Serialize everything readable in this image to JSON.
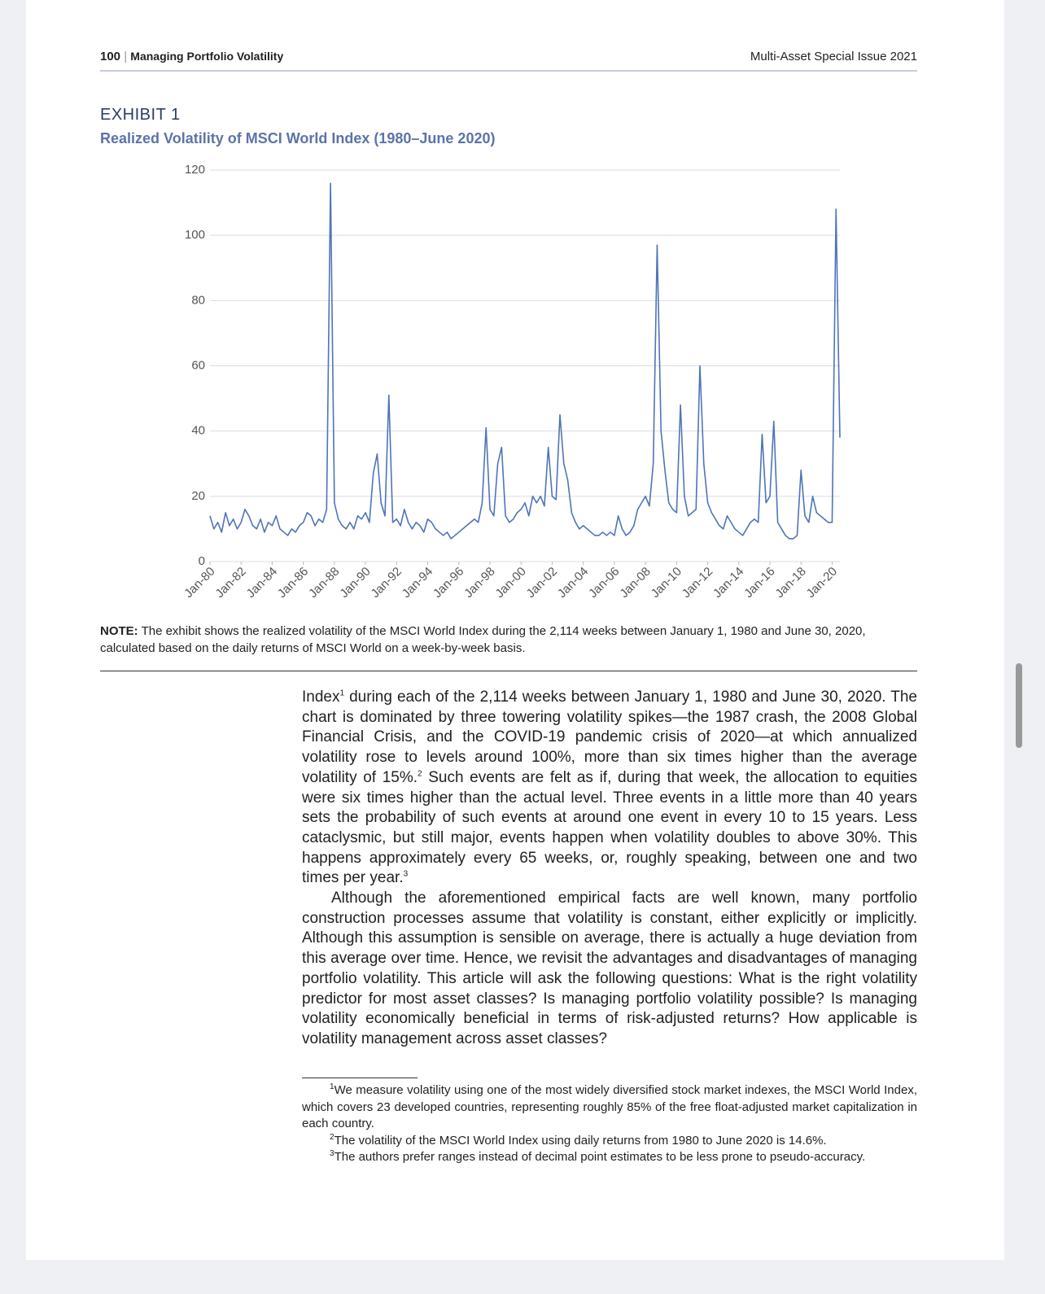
{
  "header": {
    "page_number": "100",
    "section": "Managing Portfolio Volatility",
    "publication": "Multi-Asset Special Issue 2021"
  },
  "exhibit": {
    "label": "EXHIBIT 1"
  },
  "chart_data": {
    "type": "line",
    "title": "Realized Volatility of MSCI World Index (1980–June 2020)",
    "x": [
      1980,
      1980.25,
      1980.5,
      1980.75,
      1981,
      1981.25,
      1981.5,
      1981.75,
      1982,
      1982.25,
      1982.5,
      1982.75,
      1983,
      1983.25,
      1983.5,
      1983.75,
      1984,
      1984.25,
      1984.5,
      1984.75,
      1985,
      1985.25,
      1985.5,
      1985.75,
      1986,
      1986.25,
      1986.5,
      1986.75,
      1987,
      1987.25,
      1987.5,
      1987.75,
      1988,
      1988.25,
      1988.5,
      1988.75,
      1989,
      1989.25,
      1989.5,
      1989.75,
      1990,
      1990.25,
      1990.5,
      1990.75,
      1991,
      1991.25,
      1991.5,
      1991.75,
      1992,
      1992.25,
      1992.5,
      1992.75,
      1993,
      1993.25,
      1993.5,
      1993.75,
      1994,
      1994.25,
      1994.5,
      1994.75,
      1995,
      1995.25,
      1995.5,
      1995.75,
      1996,
      1996.25,
      1996.5,
      1996.75,
      1997,
      1997.25,
      1997.5,
      1997.75,
      1998,
      1998.25,
      1998.5,
      1998.75,
      1999,
      1999.25,
      1999.5,
      1999.75,
      2000,
      2000.25,
      2000.5,
      2000.75,
      2001,
      2001.25,
      2001.5,
      2001.75,
      2002,
      2002.25,
      2002.5,
      2002.75,
      2003,
      2003.25,
      2003.5,
      2003.75,
      2004,
      2004.25,
      2004.5,
      2004.75,
      2005,
      2005.25,
      2005.5,
      2005.75,
      2006,
      2006.25,
      2006.5,
      2006.75,
      2007,
      2007.25,
      2007.5,
      2007.75,
      2008,
      2008.25,
      2008.5,
      2008.75,
      2009,
      2009.25,
      2009.5,
      2009.75,
      2010,
      2010.25,
      2010.5,
      2010.75,
      2011,
      2011.25,
      2011.5,
      2011.75,
      2012,
      2012.25,
      2012.5,
      2012.75,
      2013,
      2013.25,
      2013.5,
      2013.75,
      2014,
      2014.25,
      2014.5,
      2014.75,
      2015,
      2015.25,
      2015.5,
      2015.75,
      2016,
      2016.25,
      2016.5,
      2016.75,
      2017,
      2017.25,
      2017.5,
      2017.75,
      2018,
      2018.25,
      2018.5,
      2018.75,
      2019,
      2019.25,
      2019.5,
      2019.75,
      2020,
      2020.25,
      2020.5
    ],
    "values": [
      14,
      10,
      12,
      9,
      15,
      11,
      13,
      10,
      12,
      16,
      14,
      11,
      10,
      13,
      9,
      12,
      11,
      14,
      10,
      9,
      8,
      10,
      9,
      11,
      12,
      15,
      14,
      11,
      13,
      12,
      16,
      116,
      18,
      13,
      11,
      10,
      12,
      10,
      14,
      13,
      15,
      12,
      27,
      33,
      18,
      14,
      51,
      12,
      13,
      11,
      16,
      12,
      10,
      12,
      11,
      9,
      13,
      12,
      10,
      9,
      8,
      9,
      7,
      8,
      9,
      10,
      11,
      12,
      13,
      12,
      18,
      41,
      16,
      14,
      30,
      35,
      14,
      12,
      13,
      15,
      16,
      18,
      14,
      20,
      18,
      20,
      17,
      35,
      20,
      19,
      45,
      30,
      25,
      15,
      12,
      10,
      11,
      10,
      9,
      8,
      8,
      9,
      8,
      9,
      8,
      14,
      10,
      8,
      9,
      11,
      16,
      18,
      20,
      17,
      30,
      97,
      40,
      28,
      18,
      16,
      15,
      48,
      20,
      14,
      15,
      16,
      60,
      30,
      18,
      15,
      13,
      11,
      10,
      14,
      12,
      10,
      9,
      8,
      10,
      12,
      13,
      12,
      39,
      18,
      20,
      43,
      12,
      10,
      8,
      7,
      7,
      8,
      28,
      14,
      12,
      20,
      15,
      14,
      13,
      12,
      12,
      108,
      38
    ],
    "color": "#4f74b8",
    "xlim": [
      1980,
      2020.5
    ],
    "xticks": [
      {
        "value": 1980,
        "label": "Jan-80"
      },
      {
        "value": 1982,
        "label": "Jan-82"
      },
      {
        "value": 1984,
        "label": "Jan-84"
      },
      {
        "value": 1986,
        "label": "Jan-86"
      },
      {
        "value": 1988,
        "label": "Jan-88"
      },
      {
        "value": 1990,
        "label": "Jan-90"
      },
      {
        "value": 1992,
        "label": "Jan-92"
      },
      {
        "value": 1994,
        "label": "Jan-94"
      },
      {
        "value": 1996,
        "label": "Jan-96"
      },
      {
        "value": 1998,
        "label": "Jan-98"
      },
      {
        "value": 2000,
        "label": "Jan-00"
      },
      {
        "value": 2002,
        "label": "Jan-02"
      },
      {
        "value": 2004,
        "label": "Jan-04"
      },
      {
        "value": 2006,
        "label": "Jan-06"
      },
      {
        "value": 2008,
        "label": "Jan-08"
      },
      {
        "value": 2010,
        "label": "Jan-10"
      },
      {
        "value": 2012,
        "label": "Jan-12"
      },
      {
        "value": 2014,
        "label": "Jan-14"
      },
      {
        "value": 2016,
        "label": "Jan-16"
      },
      {
        "value": 2018,
        "label": "Jan-18"
      },
      {
        "value": 2020,
        "label": "Jan-20"
      }
    ],
    "ylim": [
      0,
      120
    ],
    "yticks": [
      0,
      20,
      40,
      60,
      80,
      100,
      120
    ],
    "grid": true
  },
  "note": {
    "label": "NOTE:",
    "text": " The exhibit shows the realized volatility of the MSCI World Index during the 2,114 weeks between January 1, 1980 and June 30, 2020, calculated based on the daily returns of MSCI World on a week-by-week basis."
  },
  "body": {
    "p1": {
      "text1": "Index",
      "ref1": "1",
      "text2": " during each of the 2,114 weeks between January 1, 1980 and June 30, 2020. The chart is dominated by three towering volatility spikes—the 1987 crash, the 2008 Global Financial Crisis, and the COVID-19 pandemic crisis of 2020—at which annualized volatility rose to levels around 100%, more than six times higher than the average volatility of 15%.",
      "ref2": "2",
      "text3": " Such events are felt as if, during that week, the allocation to equities were six times higher than the actual level. Three events in a little more than 40 years sets the probability of such events at around one event in every 10 to 15 years. Less cataclysmic, but still major, events happen when volatility doubles to above 30%. This happens approximately every 65 weeks, or, roughly speaking, between one and two times per year.",
      "ref3": "3"
    },
    "p2": "Although the aforementioned empirical facts are well known, many portfolio construction processes assume that volatility is constant, either explicitly or implicitly. Although this assumption is sensible on average, there is actually a huge deviation from this average over time. Hence, we revisit the advantages and disadvantages of managing portfolio volatility. This article will ask the following questions: What is the right volatility predictor for most asset classes? Is managing portfolio volatility possible? Is managing volatility economically beneficial in terms of risk-adjusted returns? How applicable is volatility management across asset classes?"
  },
  "footnotes": [
    {
      "mark": "1",
      "text": "We measure volatility using one of the most widely diversified stock market indexes, the MSCI World Index, which covers 23 developed countries, representing roughly 85% of the free float-adjusted market capitalization in each country."
    },
    {
      "mark": "2",
      "text": "The volatility of the MSCI World Index using daily returns from 1980 to June 2020 is 14.6%."
    },
    {
      "mark": "3",
      "text": "The authors prefer ranges instead of decimal point estimates to be less prone to pseudo-accuracy."
    }
  ]
}
